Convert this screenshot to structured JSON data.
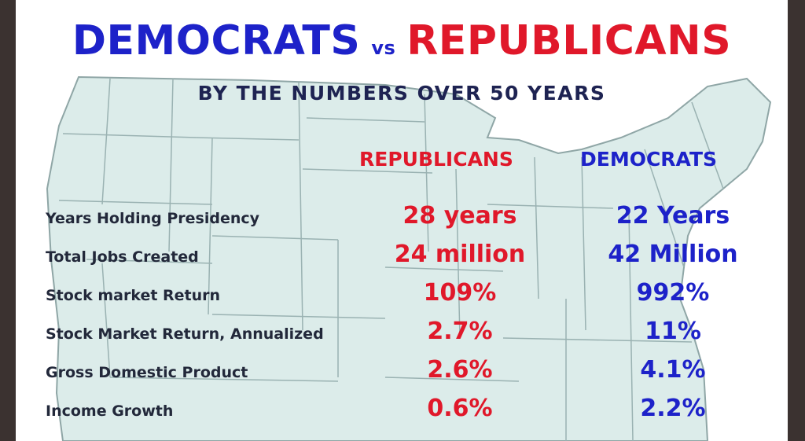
{
  "title": {
    "democrats": "DEMOCRATS",
    "vs": "vs",
    "republicans": "REPUBLICANS"
  },
  "subtitle": "BY THE NUMBERS OVER 50 YEARS",
  "columns": {
    "republicans": "REPUBLICANS",
    "democrats": "DEMOCRATS"
  },
  "rows": [
    {
      "label": "Years Holding Presidency",
      "republicans": "28 years",
      "democrats": "22 Years"
    },
    {
      "label": "Total Jobs Created",
      "republicans": "24 million",
      "democrats": "42 Million"
    },
    {
      "label": "Stock market Return",
      "republicans": "109%",
      "democrats": "992%"
    },
    {
      "label": "Stock Market Return, Annualized",
      "republicans": "2.7%",
      "democrats": "11%"
    },
    {
      "label": "Gross Domestic Product",
      "republicans": "2.6%",
      "democrats": "4.1%"
    },
    {
      "label": "Income Growth",
      "republicans": "0.6%",
      "democrats": "2.2%"
    }
  ],
  "colors": {
    "democrats": "#1d22c9",
    "republicans": "#e0182a",
    "map_fill": "#dcecea",
    "map_border": "#8fa6a6"
  }
}
